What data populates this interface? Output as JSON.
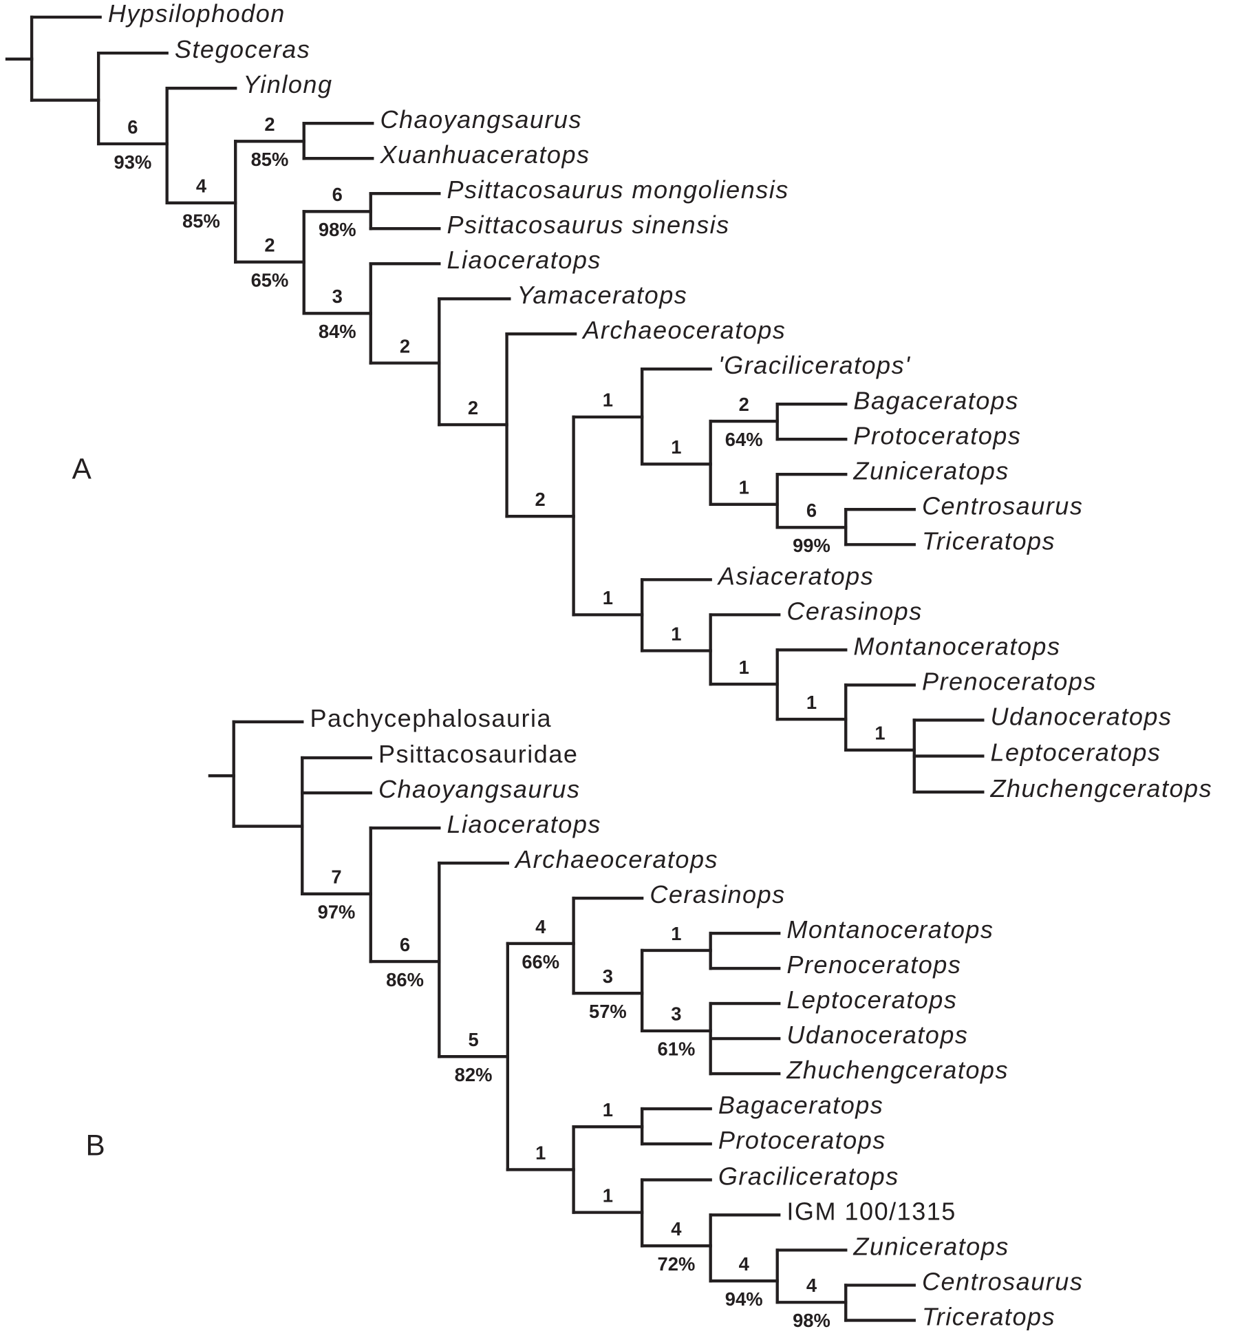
{
  "panels": [
    {
      "label": "A",
      "taxa": [
        "Hypsilophodon",
        "Stegoceras",
        "Yinlong",
        "Chaoyangsaurus",
        "Xuanhuaceratops",
        "Psittacosaurus mongoliensis",
        "Psittacosaurus sinensis",
        "Liaoceratops",
        "Yamaceratops",
        "Archaeoceratops",
        "'Graciliceratops'",
        "Bagaceratops",
        "Protoceratops",
        "Zuniceratops",
        "Centrosaurus",
        "Triceratops",
        "Asiaceratops",
        "Cerasinops",
        "Montanoceratops",
        "Prenoceratops",
        "Udanoceratops",
        "Leptoceratops",
        "Zhuchengceratops"
      ],
      "nodes": [
        {
          "support": "6",
          "bootstrap": "93%"
        },
        {
          "support": "4",
          "bootstrap": "85%"
        },
        {
          "support": "2",
          "bootstrap": "85%"
        },
        {
          "support": "2",
          "bootstrap": "65%"
        },
        {
          "support": "6",
          "bootstrap": "98%"
        },
        {
          "support": "3",
          "bootstrap": "84%"
        },
        {
          "support": "2"
        },
        {
          "support": "2"
        },
        {
          "support": "2"
        },
        {
          "support": "1"
        },
        {
          "support": "1"
        },
        {
          "support": "2",
          "bootstrap": "64%"
        },
        {
          "support": "1"
        },
        {
          "support": "6",
          "bootstrap": "99%"
        },
        {
          "support": "1"
        },
        {
          "support": "1"
        },
        {
          "support": "1"
        },
        {
          "support": "1"
        },
        {
          "support": "1"
        }
      ]
    },
    {
      "label": "B",
      "taxa": [
        "Pachycephalosauria",
        "Psittacosauridae",
        "Chaoyangsaurus",
        "Liaoceratops",
        "Archaeoceratops",
        "Cerasinops",
        "Montanoceratops",
        "Prenoceratops",
        "Leptoceratops",
        "Udanoceratops",
        "Zhuchengceratops",
        "Bagaceratops",
        "Protoceratops",
        "Graciliceratops",
        "IGM 100/1315",
        "Zuniceratops",
        "Centrosaurus",
        "Triceratops"
      ],
      "nodes": [
        {
          "support": "7",
          "bootstrap": "97%"
        },
        {
          "support": "6",
          "bootstrap": "86%"
        },
        {
          "support": "5",
          "bootstrap": "82%"
        },
        {
          "support": "4",
          "bootstrap": "66%"
        },
        {
          "support": "3",
          "bootstrap": "57%"
        },
        {
          "support": "1"
        },
        {
          "support": "3",
          "bootstrap": "61%"
        },
        {
          "support": "1"
        },
        {
          "support": "1"
        },
        {
          "support": "1"
        },
        {
          "support": "4",
          "bootstrap": "72%"
        },
        {
          "support": "4",
          "bootstrap": "94%"
        },
        {
          "support": "4",
          "bootstrap": "98%"
        }
      ]
    }
  ]
}
